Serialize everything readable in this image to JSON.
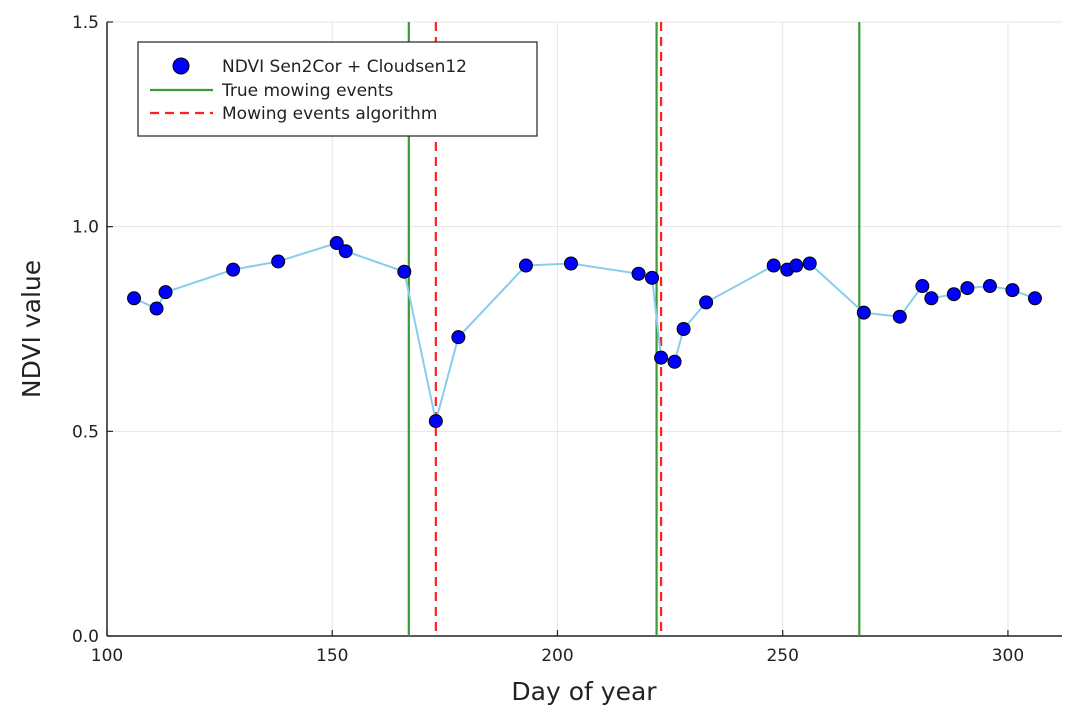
{
  "chart_data": {
    "type": "scatter",
    "xlabel": "Day of year",
    "ylabel": "NDVI value",
    "xlim": [
      100,
      312
    ],
    "ylim": [
      0.0,
      1.5
    ],
    "x_ticks": [
      100,
      150,
      200,
      250,
      300
    ],
    "x_tick_labels": [
      "100",
      "150",
      "200",
      "250",
      "300"
    ],
    "y_ticks": [
      0.0,
      0.5,
      1.0,
      1.5
    ],
    "y_tick_labels": [
      "0.0",
      "0.5",
      "1.0",
      "1.5"
    ],
    "grid": true,
    "legend_position": "top-left",
    "series": [
      {
        "name": "NDVI Sen2Cor + Cloudsen12",
        "kind": "points-with-line",
        "marker_color": "#0000ff",
        "line_color": "#87ceeb",
        "points": [
          {
            "x": 106,
            "y": 0.825
          },
          {
            "x": 111,
            "y": 0.8
          },
          {
            "x": 113,
            "y": 0.84
          },
          {
            "x": 128,
            "y": 0.895
          },
          {
            "x": 138,
            "y": 0.915
          },
          {
            "x": 151,
            "y": 0.96
          },
          {
            "x": 153,
            "y": 0.94
          },
          {
            "x": 166,
            "y": 0.89
          },
          {
            "x": 173,
            "y": 0.525
          },
          {
            "x": 178,
            "y": 0.73
          },
          {
            "x": 193,
            "y": 0.905
          },
          {
            "x": 203,
            "y": 0.91
          },
          {
            "x": 218,
            "y": 0.885
          },
          {
            "x": 221,
            "y": 0.875
          },
          {
            "x": 223,
            "y": 0.68
          },
          {
            "x": 226,
            "y": 0.67
          },
          {
            "x": 228,
            "y": 0.75
          },
          {
            "x": 233,
            "y": 0.815
          },
          {
            "x": 248,
            "y": 0.905
          },
          {
            "x": 251,
            "y": 0.895
          },
          {
            "x": 253,
            "y": 0.905
          },
          {
            "x": 256,
            "y": 0.91
          },
          {
            "x": 268,
            "y": 0.79
          },
          {
            "x": 276,
            "y": 0.78
          },
          {
            "x": 281,
            "y": 0.855
          },
          {
            "x": 283,
            "y": 0.825
          },
          {
            "x": 288,
            "y": 0.835
          },
          {
            "x": 291,
            "y": 0.85
          },
          {
            "x": 296,
            "y": 0.855
          },
          {
            "x": 301,
            "y": 0.845
          },
          {
            "x": 306,
            "y": 0.825
          }
        ]
      },
      {
        "name": "True mowing events",
        "kind": "vline",
        "style": "solid",
        "color": "#3a9a3a",
        "x": [
          167,
          222,
          267
        ]
      },
      {
        "name": "Mowing events algorithm",
        "kind": "vline",
        "style": "dashed",
        "color": "#ff2020",
        "x": [
          173,
          223
        ]
      }
    ]
  }
}
